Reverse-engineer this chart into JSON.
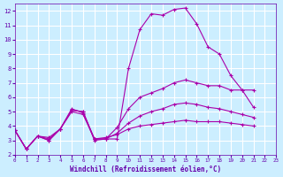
{
  "background_color": "#cceeff",
  "grid_color": "#ffffff",
  "line_color": "#aa00aa",
  "xlabel": "Windchill (Refroidissement éolien,°C)",
  "xlabel_color": "#6600aa",
  "tick_color": "#6600aa",
  "xlim": [
    0,
    23
  ],
  "ylim": [
    2,
    12.5
  ],
  "xticks": [
    0,
    1,
    2,
    3,
    4,
    5,
    6,
    7,
    8,
    9,
    10,
    11,
    12,
    13,
    14,
    15,
    16,
    17,
    18,
    19,
    20,
    21,
    22,
    23
  ],
  "yticks": [
    2,
    3,
    4,
    5,
    6,
    7,
    8,
    9,
    10,
    11,
    12
  ],
  "series": [
    [
      3.7,
      2.4,
      3.3,
      3.0,
      3.8,
      5.1,
      5.0,
      3.1,
      3.1,
      3.1,
      8.0,
      10.7,
      11.8,
      11.7,
      12.1,
      12.2,
      11.1,
      9.5,
      9.0,
      7.5,
      6.5,
      5.3
    ],
    [
      3.7,
      2.4,
      3.3,
      3.0,
      3.8,
      5.1,
      5.0,
      3.0,
      3.1,
      3.9,
      5.2,
      6.0,
      6.3,
      6.6,
      7.0,
      7.2,
      7.0,
      6.8,
      6.8,
      6.5,
      6.5,
      6.5
    ],
    [
      3.7,
      2.4,
      3.3,
      3.2,
      3.8,
      5.2,
      4.9,
      3.1,
      3.1,
      3.5,
      4.2,
      4.7,
      5.0,
      5.2,
      5.5,
      5.6,
      5.5,
      5.3,
      5.2,
      5.0,
      4.8,
      4.6
    ],
    [
      3.7,
      2.4,
      3.3,
      3.1,
      3.8,
      5.0,
      4.8,
      3.1,
      3.2,
      3.4,
      3.8,
      4.0,
      4.1,
      4.2,
      4.3,
      4.4,
      4.3,
      4.3,
      4.3,
      4.2,
      4.1,
      4.0
    ]
  ]
}
